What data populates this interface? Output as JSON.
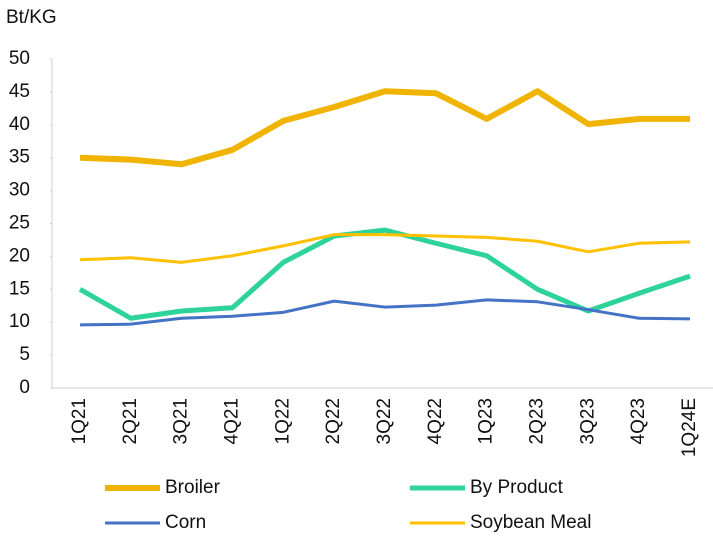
{
  "chart_data": {
    "type": "line",
    "y_axis_label": "Bt/KG",
    "categories": [
      "1Q21",
      "2Q21",
      "3Q21",
      "4Q21",
      "1Q22",
      "2Q22",
      "3Q22",
      "4Q22",
      "1Q23",
      "2Q23",
      "3Q23",
      "4Q23",
      "1Q24E"
    ],
    "series": [
      {
        "name": "Broiler",
        "color": "#f0b400",
        "values": [
          35.0,
          34.7,
          34.0,
          36.2,
          40.6,
          42.7,
          45.1,
          44.8,
          40.9,
          45.1,
          40.1,
          40.9,
          40.9
        ]
      },
      {
        "name": "By Product",
        "color": "#2ed39a",
        "values": [
          15.0,
          10.6,
          11.7,
          12.2,
          19.1,
          23.1,
          24.0,
          22.0,
          20.1,
          15.0,
          11.7,
          14.4,
          17.0
        ]
      },
      {
        "name": "Corn",
        "color": "#4472c4",
        "values": [
          9.6,
          9.7,
          10.6,
          10.9,
          11.5,
          13.2,
          12.3,
          12.6,
          13.4,
          13.1,
          11.9,
          10.6,
          10.5
        ]
      },
      {
        "name": "Soybean Meal",
        "color": "#ffc000",
        "values": [
          19.5,
          19.8,
          19.1,
          20.1,
          21.6,
          23.3,
          23.3,
          23.1,
          22.9,
          22.3,
          20.7,
          22.0,
          22.2
        ]
      }
    ],
    "ylim": [
      0,
      50
    ],
    "yticks": [
      0,
      5,
      10,
      15,
      20,
      25,
      30,
      35,
      40,
      45,
      50
    ],
    "grid": false,
    "legend": "bottom"
  }
}
